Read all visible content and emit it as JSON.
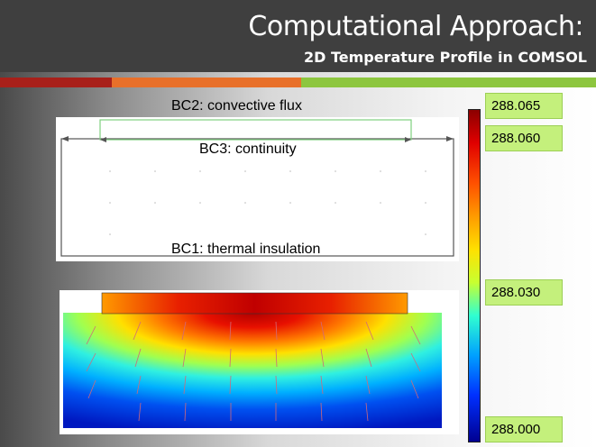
{
  "slide": {
    "title": "Computational Approach:",
    "subtitle": "2D Temperature Profile in COMSOL"
  },
  "geometry_panel": {
    "bc2_label": "BC2: convective flux",
    "bc3_label": "BC3: continuity",
    "bc1_label": "BC1: thermal insulation"
  },
  "colorbar": {
    "labels": [
      "288.065",
      "288.060",
      "288.030",
      "288.000"
    ],
    "colors": [
      "#8b0000",
      "#e00000",
      "#ff9a00",
      "#ffe000",
      "#30ffd0",
      "#00a0ff",
      "#000090"
    ]
  },
  "colors": {
    "header_bg": "#3f3f3f",
    "band_red": "#a8201a",
    "band_orange": "#e8702a",
    "band_green": "#8dc63f",
    "label_box": "#c4f07c"
  }
}
